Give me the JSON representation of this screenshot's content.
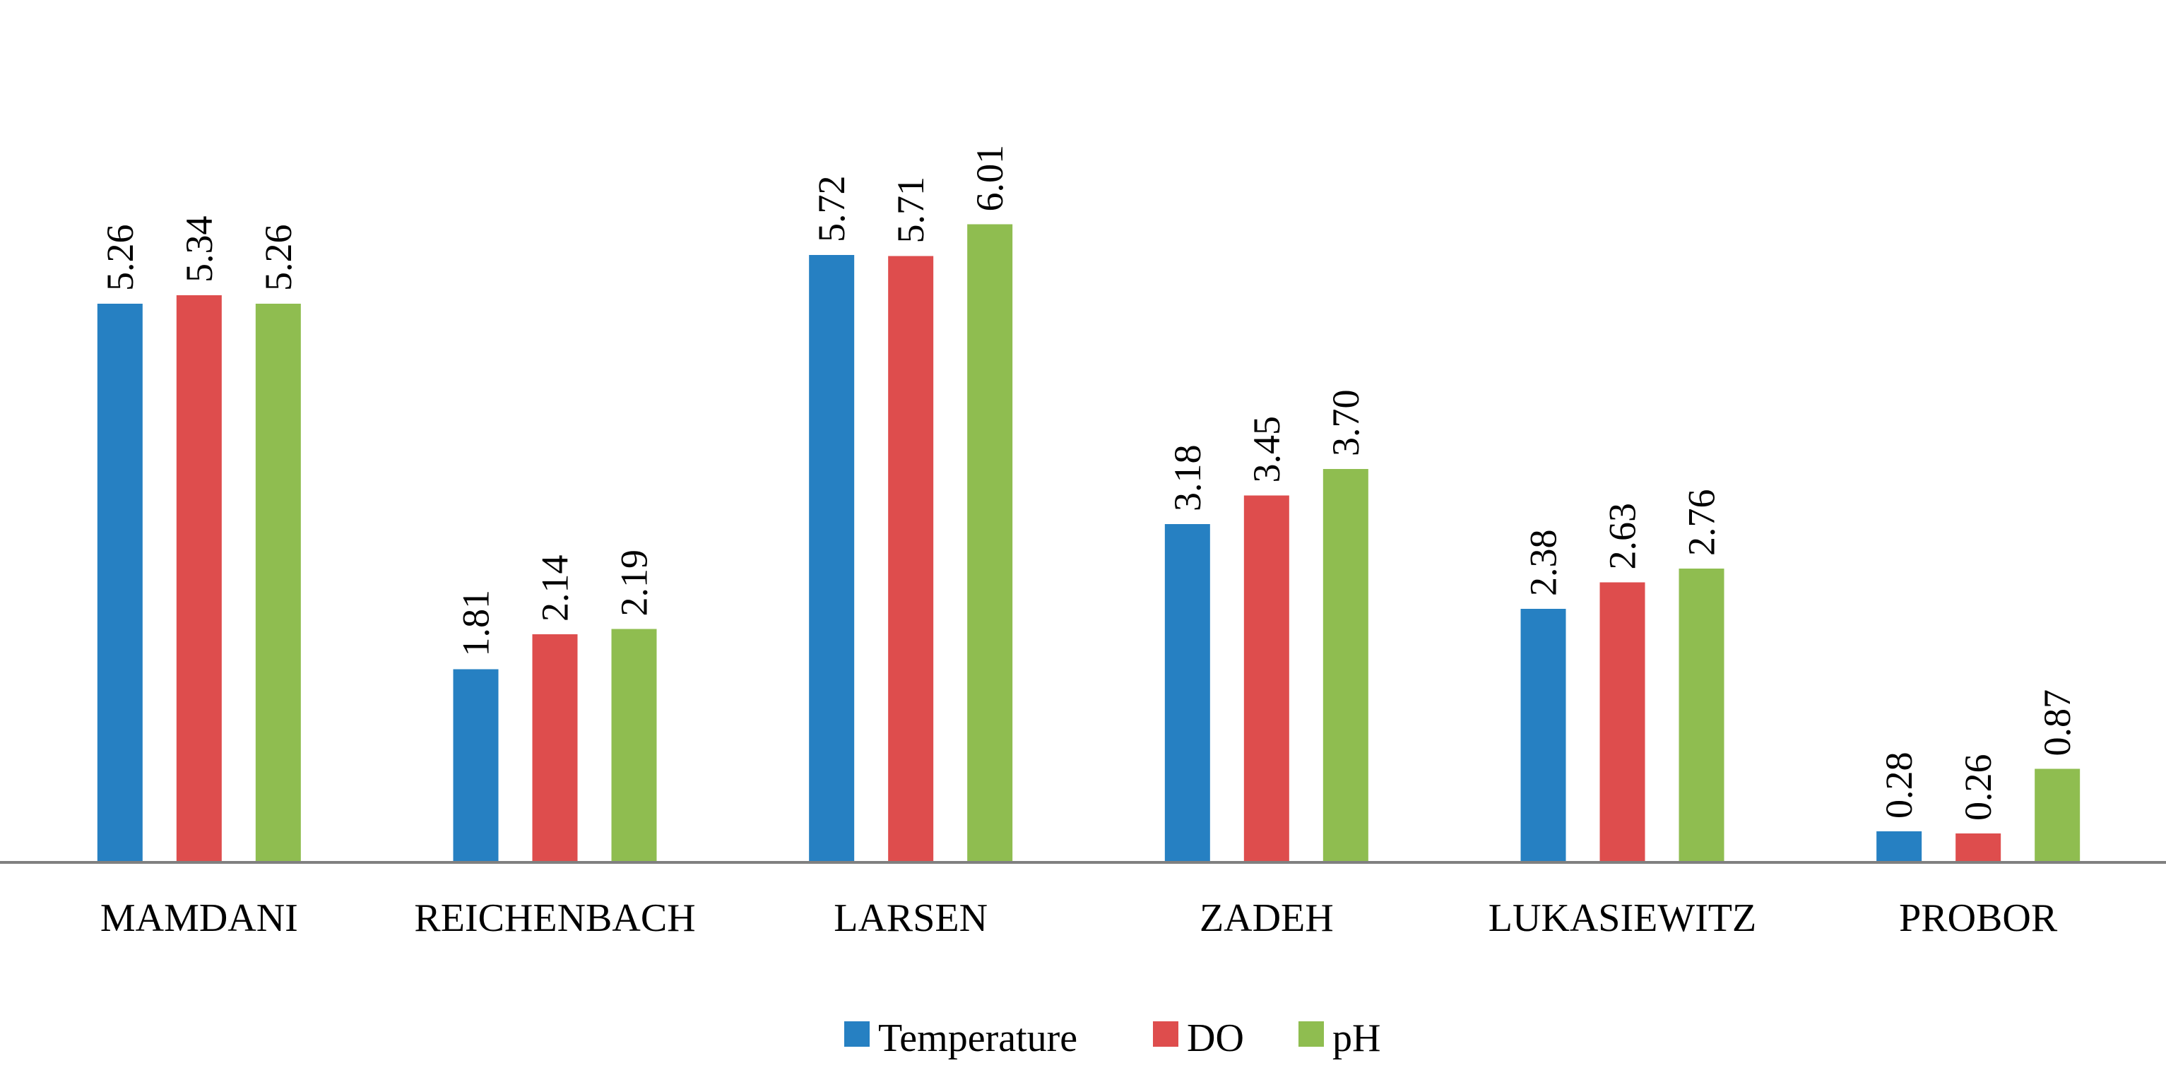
{
  "chart_data": {
    "type": "bar",
    "title": "",
    "xlabel": "",
    "ylabel": "",
    "ylim": [
      0,
      6.5
    ],
    "grid": false,
    "legend_position": "bottom",
    "categories": [
      "MAMDANI",
      "REICHENBACH",
      "LARSEN",
      "ZADEH",
      "LUKASIEWITZ",
      "PROBOR"
    ],
    "series": [
      {
        "name": "Temperature",
        "color": "#2680c2",
        "values": [
          5.26,
          1.81,
          5.72,
          3.18,
          2.38,
          0.28
        ],
        "labels": [
          "5.26",
          "1.81",
          "5.72",
          "3.18",
          "2.38",
          "0.28"
        ]
      },
      {
        "name": "DO",
        "color": "#de4d4d",
        "values": [
          5.34,
          2.14,
          5.71,
          3.45,
          2.63,
          0.26
        ],
        "labels": [
          "5.34",
          "2.14",
          "5.71",
          "3.45",
          "2.63",
          "0.26"
        ]
      },
      {
        "name": "pH",
        "color": "#8fbd50",
        "values": [
          5.26,
          2.19,
          6.01,
          3.7,
          2.76,
          0.87
        ],
        "labels": [
          "5.26",
          "2.19",
          "6.01",
          "3.70",
          "2.76",
          "0.87"
        ]
      }
    ],
    "axis_color": "#808080"
  }
}
